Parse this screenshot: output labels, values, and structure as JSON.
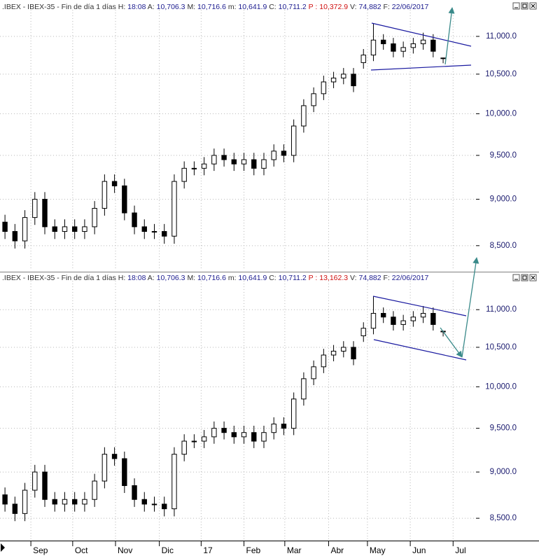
{
  "chart_data": [
    {
      "type": "candlestick",
      "header": {
        "name": ".IBEX - IBEX-35 - Fin de día 1 días",
        "fields": [
          {
            "label": "H:",
            "value": "18:08"
          },
          {
            "label": "A:",
            "value": "10,706.3"
          },
          {
            "label": "M:",
            "value": "10,716.6"
          },
          {
            "label": "m:",
            "value": "10,641.9"
          },
          {
            "label": "C:",
            "value": "10,711.2"
          },
          {
            "label": "P :",
            "value": "10,372.9"
          },
          {
            "label": "V:",
            "value": "74,882"
          },
          {
            "label": "F:",
            "value": "22/06/2017"
          }
        ]
      },
      "x": [
        0,
        1,
        2,
        3,
        4,
        5,
        6,
        7,
        8,
        9,
        10,
        11,
        12,
        13,
        14,
        15,
        16,
        17,
        18,
        19,
        20,
        21,
        22,
        23,
        24,
        25,
        26,
        27,
        28,
        29,
        30,
        31,
        32,
        33,
        34,
        35,
        36,
        37,
        38,
        39,
        40,
        41,
        42,
        43,
        44
      ],
      "open": [
        8750,
        8650,
        8550,
        8800,
        9000,
        8700,
        8650,
        8700,
        8650,
        8700,
        8900,
        9200,
        9150,
        8850,
        8700,
        8650,
        8650,
        8600,
        9200,
        9350,
        9350,
        9400,
        9500,
        9450,
        9400,
        9450,
        9350,
        9450,
        9550,
        9500,
        9850,
        10100,
        10250,
        10400,
        10450,
        10500,
        10650,
        10750,
        10950,
        10900,
        10800,
        10850,
        10900,
        10950,
        10706.3
      ],
      "high": [
        8830,
        8730,
        8880,
        9080,
        9080,
        8780,
        8780,
        8780,
        8780,
        8980,
        9280,
        9280,
        9230,
        8930,
        8780,
        8730,
        8730,
        9280,
        9430,
        9430,
        9480,
        9580,
        9580,
        9530,
        9530,
        9530,
        9530,
        9630,
        9630,
        9930,
        10180,
        10330,
        10480,
        10530,
        10580,
        10580,
        10830,
        11180,
        11030,
        10980,
        10930,
        10980,
        11050,
        11030,
        10716.6
      ],
      "low": [
        8570,
        8470,
        8470,
        8720,
        8620,
        8570,
        8570,
        8570,
        8570,
        8620,
        8820,
        9070,
        8770,
        8620,
        8570,
        8570,
        8520,
        8520,
        9120,
        9270,
        9270,
        9320,
        9370,
        9320,
        9320,
        9270,
        9270,
        9370,
        9420,
        9420,
        9770,
        10020,
        10170,
        10320,
        10370,
        10270,
        10570,
        10670,
        10820,
        10720,
        10720,
        10770,
        10820,
        10720,
        10641.9
      ],
      "close": [
        8650,
        8550,
        8800,
        9000,
        8700,
        8650,
        8700,
        8650,
        8700,
        8900,
        9200,
        9150,
        8850,
        8700,
        8650,
        8650,
        8600,
        9200,
        9350,
        9350,
        9400,
        9500,
        9450,
        9400,
        9450,
        9350,
        9450,
        9550,
        9500,
        9850,
        10100,
        10250,
        10400,
        10450,
        10500,
        10350,
        10750,
        10950,
        10900,
        10800,
        10850,
        10900,
        10950,
        10800,
        10711.2
      ],
      "xlim": [
        -0.5,
        47.3
      ],
      "ylim": [
        8253,
        11327
      ],
      "log_scale": true,
      "grid": true,
      "color": "#000000",
      "yticks": [
        {
          "value": 8500,
          "label": "8,500.0"
        },
        {
          "value": 9000,
          "label": "9,000.0"
        },
        {
          "value": 9500,
          "label": "9,500.0"
        },
        {
          "value": 10000,
          "label": "10,000.0"
        },
        {
          "value": 10500,
          "label": "10,500.0"
        },
        {
          "value": 11000,
          "label": "11,000.0"
        }
      ]
    },
    {
      "type": "candlestick",
      "header": {
        "name": ".IBEX - IBEX-35 - Fin de día 1 días",
        "fields": [
          {
            "label": "H:",
            "value": "18:08"
          },
          {
            "label": "A:",
            "value": "10,706.3"
          },
          {
            "label": "M:",
            "value": "10,716.6"
          },
          {
            "label": "m:",
            "value": "10,641.9"
          },
          {
            "label": "C:",
            "value": "10,711.2"
          },
          {
            "label": "P :",
            "value": "13,162.3"
          },
          {
            "label": "V:",
            "value": "74,882"
          },
          {
            "label": "F:",
            "value": "22/06/2017"
          }
        ]
      },
      "x": [
        0,
        1,
        2,
        3,
        4,
        5,
        6,
        7,
        8,
        9,
        10,
        11,
        12,
        13,
        14,
        15,
        16,
        17,
        18,
        19,
        20,
        21,
        22,
        23,
        24,
        25,
        26,
        27,
        28,
        29,
        30,
        31,
        32,
        33,
        34,
        35,
        36,
        37,
        38,
        39,
        40,
        41,
        42,
        43,
        44
      ],
      "open": [
        8750,
        8650,
        8550,
        8800,
        9000,
        8700,
        8650,
        8700,
        8650,
        8700,
        8900,
        9200,
        9150,
        8850,
        8700,
        8650,
        8650,
        8600,
        9200,
        9350,
        9350,
        9400,
        9500,
        9450,
        9400,
        9450,
        9350,
        9450,
        9550,
        9500,
        9850,
        10100,
        10250,
        10400,
        10450,
        10500,
        10650,
        10750,
        10950,
        10900,
        10800,
        10850,
        10900,
        10950,
        10706.3
      ],
      "high": [
        8830,
        8730,
        8880,
        9080,
        9080,
        8780,
        8780,
        8780,
        8780,
        8980,
        9280,
        9280,
        9230,
        8930,
        8780,
        8730,
        8730,
        9280,
        9430,
        9430,
        9480,
        9580,
        9580,
        9530,
        9530,
        9530,
        9530,
        9630,
        9630,
        9930,
        10180,
        10330,
        10480,
        10530,
        10580,
        10580,
        10830,
        11180,
        11030,
        10980,
        10930,
        10980,
        11050,
        11030,
        10716.6
      ],
      "low": [
        8570,
        8470,
        8470,
        8720,
        8620,
        8570,
        8570,
        8570,
        8570,
        8620,
        8820,
        9070,
        8770,
        8620,
        8570,
        8570,
        8520,
        8520,
        9120,
        9270,
        9270,
        9320,
        9370,
        9320,
        9320,
        9270,
        9270,
        9370,
        9420,
        9420,
        9770,
        10020,
        10170,
        10320,
        10370,
        10270,
        10570,
        10670,
        10820,
        10720,
        10720,
        10770,
        10820,
        10720,
        10641.9
      ],
      "close": [
        8650,
        8550,
        8800,
        9000,
        8700,
        8650,
        8700,
        8650,
        8700,
        8900,
        9200,
        9150,
        8850,
        8700,
        8650,
        8650,
        8600,
        9200,
        9350,
        9350,
        9400,
        9500,
        9450,
        9400,
        9450,
        9350,
        9450,
        9550,
        9500,
        9850,
        10100,
        10250,
        10400,
        10450,
        10500,
        10350,
        10750,
        10950,
        10900,
        10800,
        10850,
        10900,
        10950,
        10800,
        10711.2
      ],
      "xlim": [
        -0.5,
        47.3
      ],
      "xticks": [
        {
          "value": 2.6,
          "label": "Sep"
        },
        {
          "value": 6.8,
          "label": "Oct"
        },
        {
          "value": 11.1,
          "label": "Nov"
        },
        {
          "value": 15.5,
          "label": "Dic"
        },
        {
          "value": 19.7,
          "label": "17"
        },
        {
          "value": 24.0,
          "label": "Feb"
        },
        {
          "value": 28.1,
          "label": "Mar"
        },
        {
          "value": 32.5,
          "label": "Abr"
        },
        {
          "value": 36.4,
          "label": "May"
        },
        {
          "value": 40.7,
          "label": "Jun"
        },
        {
          "value": 45.0,
          "label": "Jul"
        }
      ],
      "ylim": [
        8283,
        11360
      ],
      "log_scale": true,
      "grid": true,
      "color": "#000000",
      "yticks": [
        {
          "value": 8500,
          "label": "8,500.0"
        },
        {
          "value": 9000,
          "label": "9,000.0"
        },
        {
          "value": 9500,
          "label": "9,500.0"
        },
        {
          "value": 10000,
          "label": "10,000.0"
        },
        {
          "value": 10500,
          "label": "10,500.0"
        },
        {
          "value": 11000,
          "label": "11,000.0"
        }
      ]
    }
  ]
}
